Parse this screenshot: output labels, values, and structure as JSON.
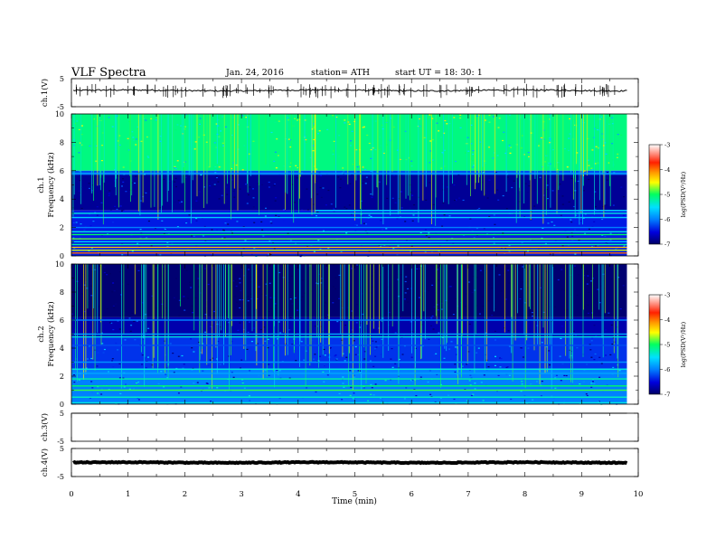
{
  "header": {
    "title": "VLF  Spectra",
    "date": "Jan. 24, 2016",
    "station": "station= ATH",
    "start_ut": "start  UT =   18: 30: 1"
  },
  "chart_data": {
    "type": "heatmap",
    "x_axis": {
      "label": "Time  (min)",
      "range": [
        0,
        10
      ],
      "ticks": [
        "0",
        "1",
        "2",
        "3",
        "4",
        "5",
        "6",
        "7",
        "8",
        "9",
        "10"
      ],
      "data_end": 9.8
    },
    "colors": {
      "scale": [
        "#000066",
        "#0000dd",
        "#0080ff",
        "#00e0ff",
        "#00ff60",
        "#ffff00",
        "#ff9900",
        "#ff2000",
        "#ffffff"
      ],
      "trace": "#000000"
    },
    "panels": [
      {
        "kind": "waveform",
        "ylabel": "ch.1(V)",
        "yticks": [
          "5",
          "-5"
        ],
        "ylim": [
          -5,
          5
        ],
        "trace": {
          "baseline": 0.8,
          "noise": 0.25,
          "spikes": 120
        }
      },
      {
        "kind": "spectrogram",
        "channel_label": "ch.1",
        "ylabel": "Frequency  (kHz)",
        "yticks": [
          "10",
          "8",
          "6",
          "4",
          "2",
          "0"
        ],
        "ylim": [
          0,
          10
        ],
        "colorbar": {
          "label": "log(PSD(V²/Hz)",
          "ticks": [
            "-3",
            "-4",
            "-5",
            "-6",
            "-7"
          ],
          "range": [
            -7,
            -3
          ]
        },
        "bands": [
          {
            "f0": 6.0,
            "f1": 10.0,
            "level": -5.1
          },
          {
            "f0": 5.7,
            "f1": 6.0,
            "level": -6.2
          },
          {
            "f0": 3.2,
            "f1": 5.7,
            "level": -6.8
          },
          {
            "f0": 0.0,
            "f1": 3.2,
            "level": -6.4
          }
        ],
        "lines": [
          {
            "f": 5.8,
            "level": -5.8
          },
          {
            "f": 3.2,
            "level": -5.6,
            "from_min": 4.3
          },
          {
            "f": 3.0,
            "level": -5.4
          },
          {
            "f": 2.7,
            "level": -5.6
          },
          {
            "f": 2.0,
            "level": -6.0
          },
          {
            "f": 1.7,
            "level": -5.4
          },
          {
            "f": 1.5,
            "level": -5.0
          },
          {
            "f": 1.2,
            "level": -4.8
          },
          {
            "f": 1.0,
            "level": -5.6
          },
          {
            "f": 0.8,
            "level": -5.2
          },
          {
            "f": 0.6,
            "level": -4.2
          },
          {
            "f": 0.4,
            "level": -4.6
          },
          {
            "f": 0.2,
            "level": -3.8
          }
        ],
        "spikes": 150
      },
      {
        "kind": "spectrogram",
        "channel_label": "ch.2",
        "ylabel": "Frequency  (kHz)",
        "yticks": [
          "10",
          "8",
          "6",
          "4",
          "2",
          "0"
        ],
        "ylim": [
          0,
          10
        ],
        "colorbar": {
          "label": "log(PSD(V²/Hz)",
          "ticks": [
            "-3",
            "-4",
            "-5",
            "-6",
            "-7"
          ],
          "range": [
            -7,
            -3
          ]
        },
        "bands": [
          {
            "f0": 6.2,
            "f1": 10.0,
            "level": -6.95
          },
          {
            "f0": 4.8,
            "f1": 6.2,
            "level": -6.7
          },
          {
            "f0": 2.5,
            "f1": 4.8,
            "level": -6.3
          },
          {
            "f0": 0.0,
            "f1": 2.5,
            "level": -6.0
          }
        ],
        "lines": [
          {
            "f": 6.0,
            "level": -6.0
          },
          {
            "f": 5.0,
            "level": -5.8
          },
          {
            "f": 4.8,
            "level": -5.4
          },
          {
            "f": 4.2,
            "level": -6.2
          },
          {
            "f": 3.0,
            "level": -5.9
          },
          {
            "f": 2.5,
            "level": -5.4
          },
          {
            "f": 2.2,
            "level": -5.8
          },
          {
            "f": 1.8,
            "level": -5.2
          },
          {
            "f": 1.3,
            "level": -5.0
          },
          {
            "f": 1.0,
            "level": -4.9
          },
          {
            "f": 0.5,
            "level": -5.3
          },
          {
            "f": 0.1,
            "level": -5.4
          }
        ],
        "spikes": 160
      },
      {
        "kind": "waveform",
        "ylabel": "ch.3(V)",
        "yticks": [
          "5",
          "-5"
        ],
        "ylim": [
          -5,
          5
        ],
        "trace": {
          "baseline": 5.0,
          "noise": 0.0,
          "spikes": 0
        }
      },
      {
        "kind": "waveform",
        "ylabel": "ch.4(V)",
        "yticks": [
          "5",
          "-5"
        ],
        "ylim": [
          -5,
          5
        ],
        "trace": {
          "baseline": 0.0,
          "noise": 0.15,
          "spikes": 0,
          "thick": true
        }
      }
    ]
  }
}
